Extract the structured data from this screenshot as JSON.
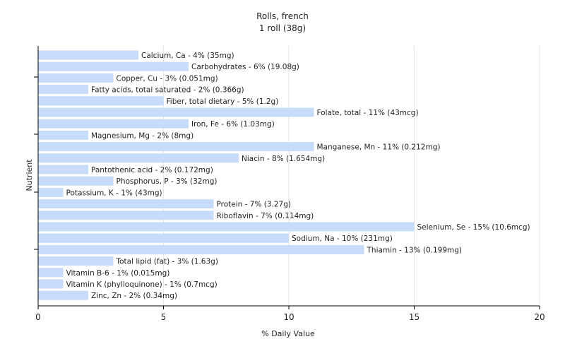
{
  "chart_data": {
    "type": "bar",
    "orientation": "horizontal",
    "title": "Rolls, french",
    "subtitle": "1 roll (38g)",
    "xlabel": "% Daily Value",
    "ylabel": "Nutrient",
    "xlim": [
      0,
      20
    ],
    "xticks": [
      0,
      5,
      10,
      15,
      20
    ],
    "grid": "vertical",
    "bar_color": "#c6dcfa",
    "categories": [
      "Calcium, Ca",
      "Carbohydrates",
      "Copper, Cu",
      "Fatty acids, total saturated",
      "Fiber, total dietary",
      "Folate, total",
      "Iron, Fe",
      "Magnesium, Mg",
      "Manganese, Mn",
      "Niacin",
      "Pantothenic acid",
      "Phosphorus, P",
      "Potassium, K",
      "Protein",
      "Riboflavin",
      "Selenium, Se",
      "Sodium, Na",
      "Thiamin",
      "Total lipid (fat)",
      "Vitamin B-6",
      "Vitamin K (phylloquinone)",
      "Zinc, Zn"
    ],
    "values": [
      4,
      6,
      3,
      2,
      5,
      11,
      6,
      2,
      11,
      8,
      2,
      3,
      1,
      7,
      7,
      15,
      10,
      13,
      3,
      1,
      1,
      2
    ],
    "labels": [
      "Calcium, Ca - 4% (35mg)",
      "Carbohydrates - 6% (19.08g)",
      "Copper, Cu - 3% (0.051mg)",
      "Fatty acids, total saturated - 2% (0.366g)",
      "Fiber, total dietary - 5% (1.2g)",
      "Folate, total - 11% (43mcg)",
      "Iron, Fe - 6% (1.03mg)",
      "Magnesium, Mg - 2% (8mg)",
      "Manganese, Mn - 11% (0.212mg)",
      "Niacin - 8% (1.654mg)",
      "Pantothenic acid - 2% (0.172mg)",
      "Phosphorus, P - 3% (32mg)",
      "Potassium, K - 1% (43mg)",
      "Protein - 7% (3.27g)",
      "Riboflavin - 7% (0.114mg)",
      "Selenium, Se - 15% (10.6mcg)",
      "Sodium, Na - 10% (231mg)",
      "Thiamin - 13% (0.199mg)",
      "Total lipid (fat) - 3% (1.63g)",
      "Vitamin B-6 - 1% (0.015mg)",
      "Vitamin K (phylloquinone) - 1% (0.7mcg)",
      "Zinc, Zn - 2% (0.34mg)"
    ]
  }
}
